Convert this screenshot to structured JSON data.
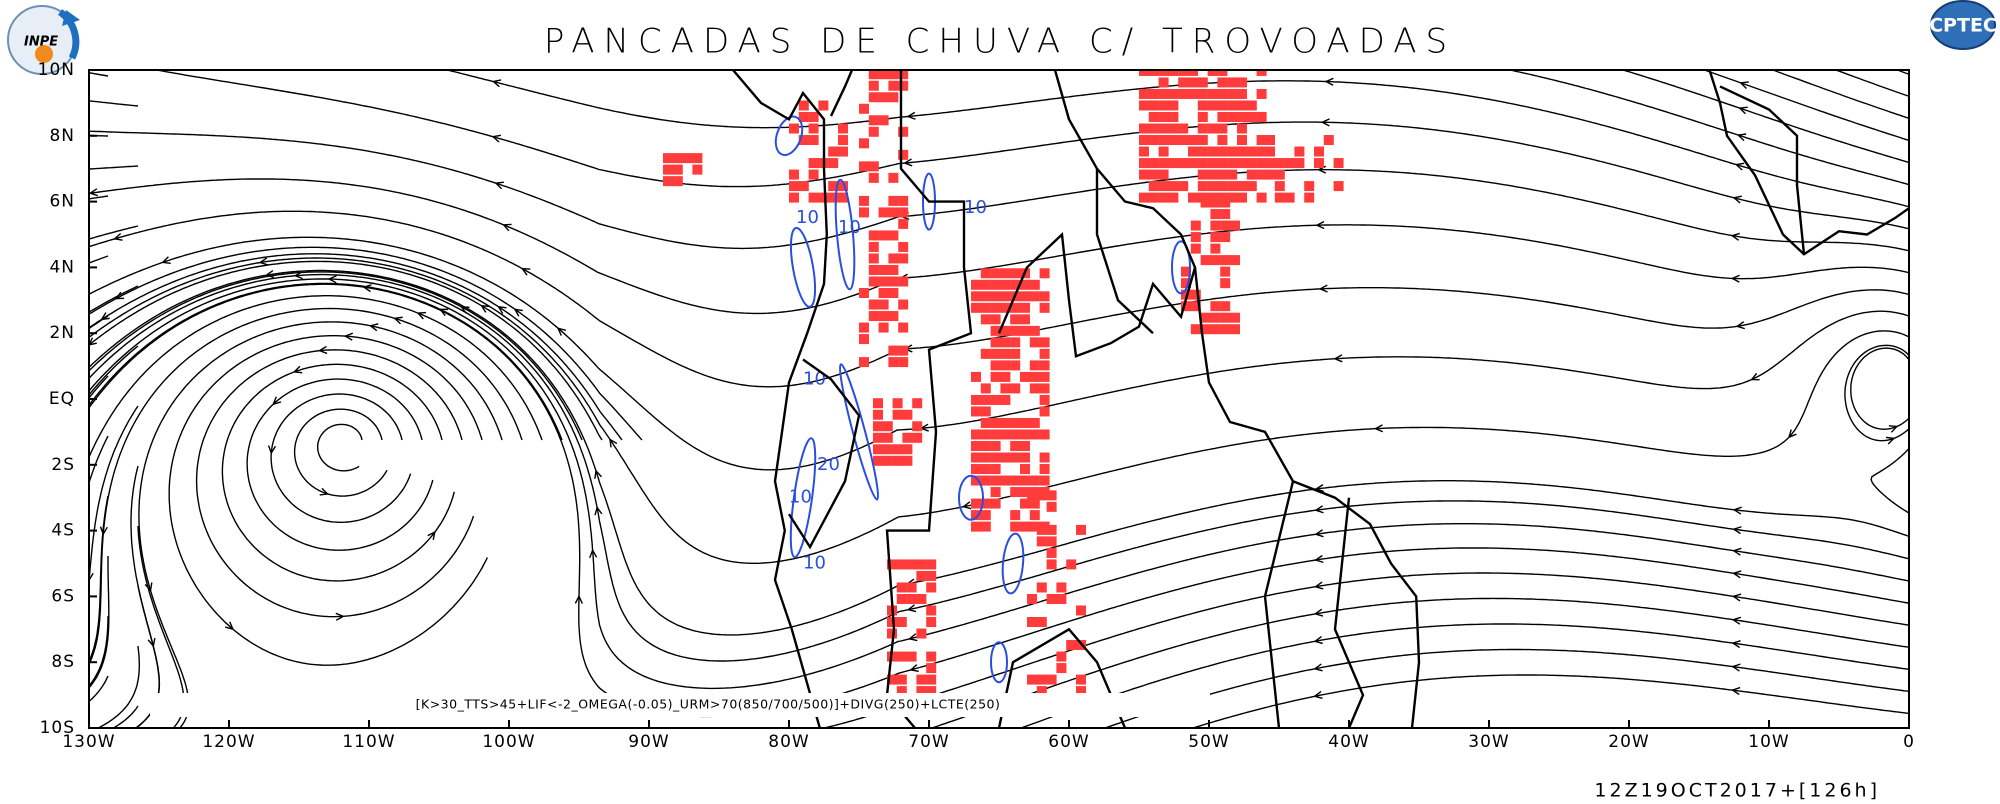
{
  "header": {
    "title": "PANCADAS DE CHUVA C/ TROVOADAS",
    "logo_left": "INPE",
    "logo_right": "CPTEC"
  },
  "map": {
    "xlim": [
      -130,
      0
    ],
    "ylim": [
      -10,
      10
    ],
    "xticks": [
      {
        "value": -130,
        "label": "130W"
      },
      {
        "value": -120,
        "label": "120W"
      },
      {
        "value": -110,
        "label": "110W"
      },
      {
        "value": -100,
        "label": "100W"
      },
      {
        "value": -90,
        "label": "90W"
      },
      {
        "value": -80,
        "label": "80W"
      },
      {
        "value": -70,
        "label": "70W"
      },
      {
        "value": -60,
        "label": "60W"
      },
      {
        "value": -50,
        "label": "50W"
      },
      {
        "value": -40,
        "label": "40W"
      },
      {
        "value": -30,
        "label": "30W"
      },
      {
        "value": -20,
        "label": "20W"
      },
      {
        "value": -10,
        "label": "10W"
      },
      0
    ],
    "yticks": [
      {
        "value": 10,
        "label": "10N"
      },
      {
        "value": 8,
        "label": "8N"
      },
      {
        "value": 6,
        "label": "6N"
      },
      {
        "value": 4,
        "label": "4N"
      },
      {
        "value": 2,
        "label": "2N"
      },
      {
        "value": 0,
        "label": "EQ"
      },
      {
        "value": -2,
        "label": "2S"
      },
      {
        "value": -4,
        "label": "4S"
      },
      {
        "value": -6,
        "label": "6S"
      },
      {
        "value": -8,
        "label": "8S"
      },
      {
        "value": -10,
        "label": "10S"
      }
    ],
    "contour_labels": [
      "10",
      "10",
      "10",
      "10",
      "20",
      "10",
      "10"
    ]
  },
  "legend_text": "[K>30_TTS>45+LIF<-2_OMEGA(-0.05)_URM>70(850/700/500)]+DIVG(250)+LCTE(250)",
  "timestamp": "12Z19OCT2017+[126h]"
}
